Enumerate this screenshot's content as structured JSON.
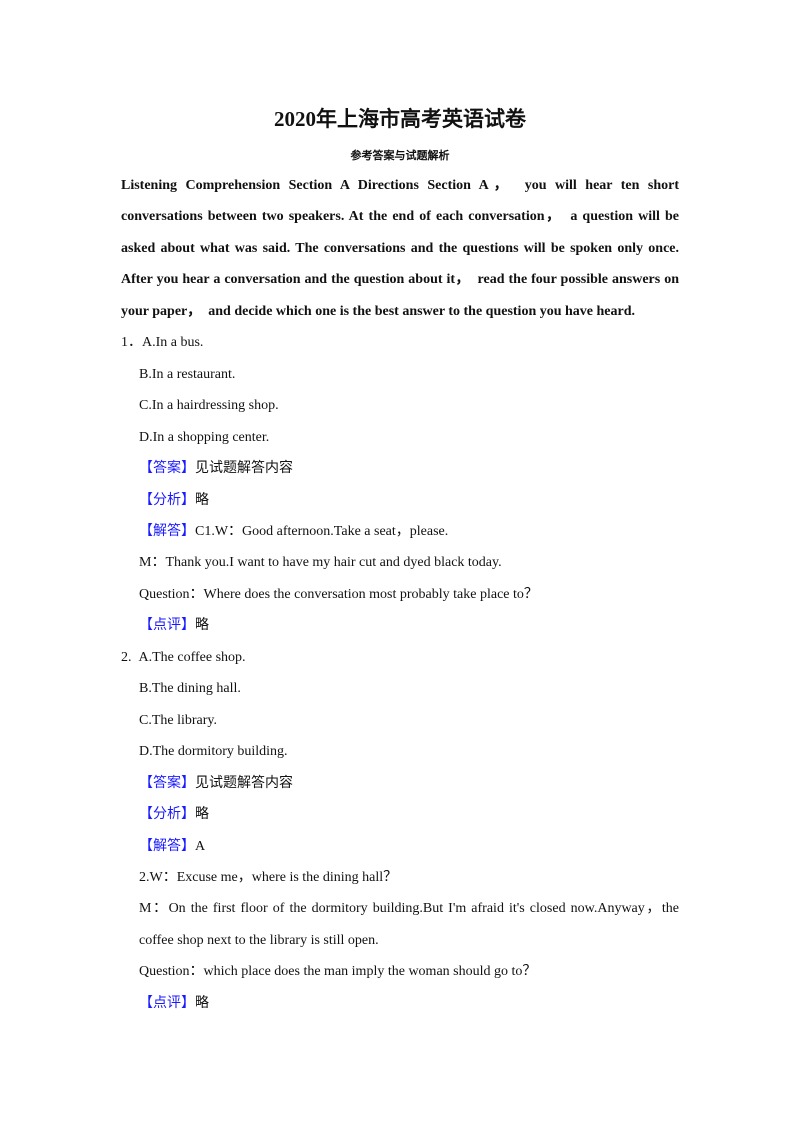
{
  "title": "2020年上海市高考英语试卷",
  "subtitle": "参考答案与试题解析",
  "intro": "Listening Comprehension Section A Directions Section A，　you will hear ten short conversations between two speakers. At the end of each conversation，　a question will be asked about what was said. The conversations and the questions will be spoken only once. After you hear a conversation and the question about it，　read the four possible answers on your paper，　and decide which one is the best answer to the question you have heard.",
  "colors": {
    "tag": "#1a1aff",
    "text": "#111111"
  },
  "q1": {
    "number": "1．",
    "a": "A.In a bus.",
    "b": "B.In a restaurant.",
    "c": "C.In a hairdressing shop.",
    "d": "D.In a shopping center.",
    "answer_tag": "【答案】",
    "answer": "见试题解答内容",
    "analysis_tag": "【分析】",
    "analysis": "略",
    "solution_tag": "【解答】",
    "solution": "C1.W：Good afternoon.Take a seat，please.",
    "line2": "M：Thank you.I want to have my hair cut and dyed black today.",
    "line3": "Question：Where does the conversation most probably take place to？",
    "comment_tag": "【点评】",
    "comment": "略"
  },
  "q2": {
    "number": "2.",
    "a": "A.The coffee shop.",
    "b": "B.The dining hall.",
    "c": "C.The library.",
    "d": "D.The dormitory building.",
    "answer_tag": "【答案】",
    "answer": "见试题解答内容",
    "analysis_tag": "【分析】",
    "analysis": "略",
    "solution_tag": "【解答】",
    "solution": "A",
    "line1": "2.W：Excuse me，where is the dining hall？",
    "line2": "M：On the first floor of the dormitory building.But I'm afraid it's closed now.Anyway，the coffee shop next to the library is still open.",
    "line3": "Question：which place does the man imply the woman should go to？",
    "comment_tag": "【点评】",
    "comment": "略"
  }
}
